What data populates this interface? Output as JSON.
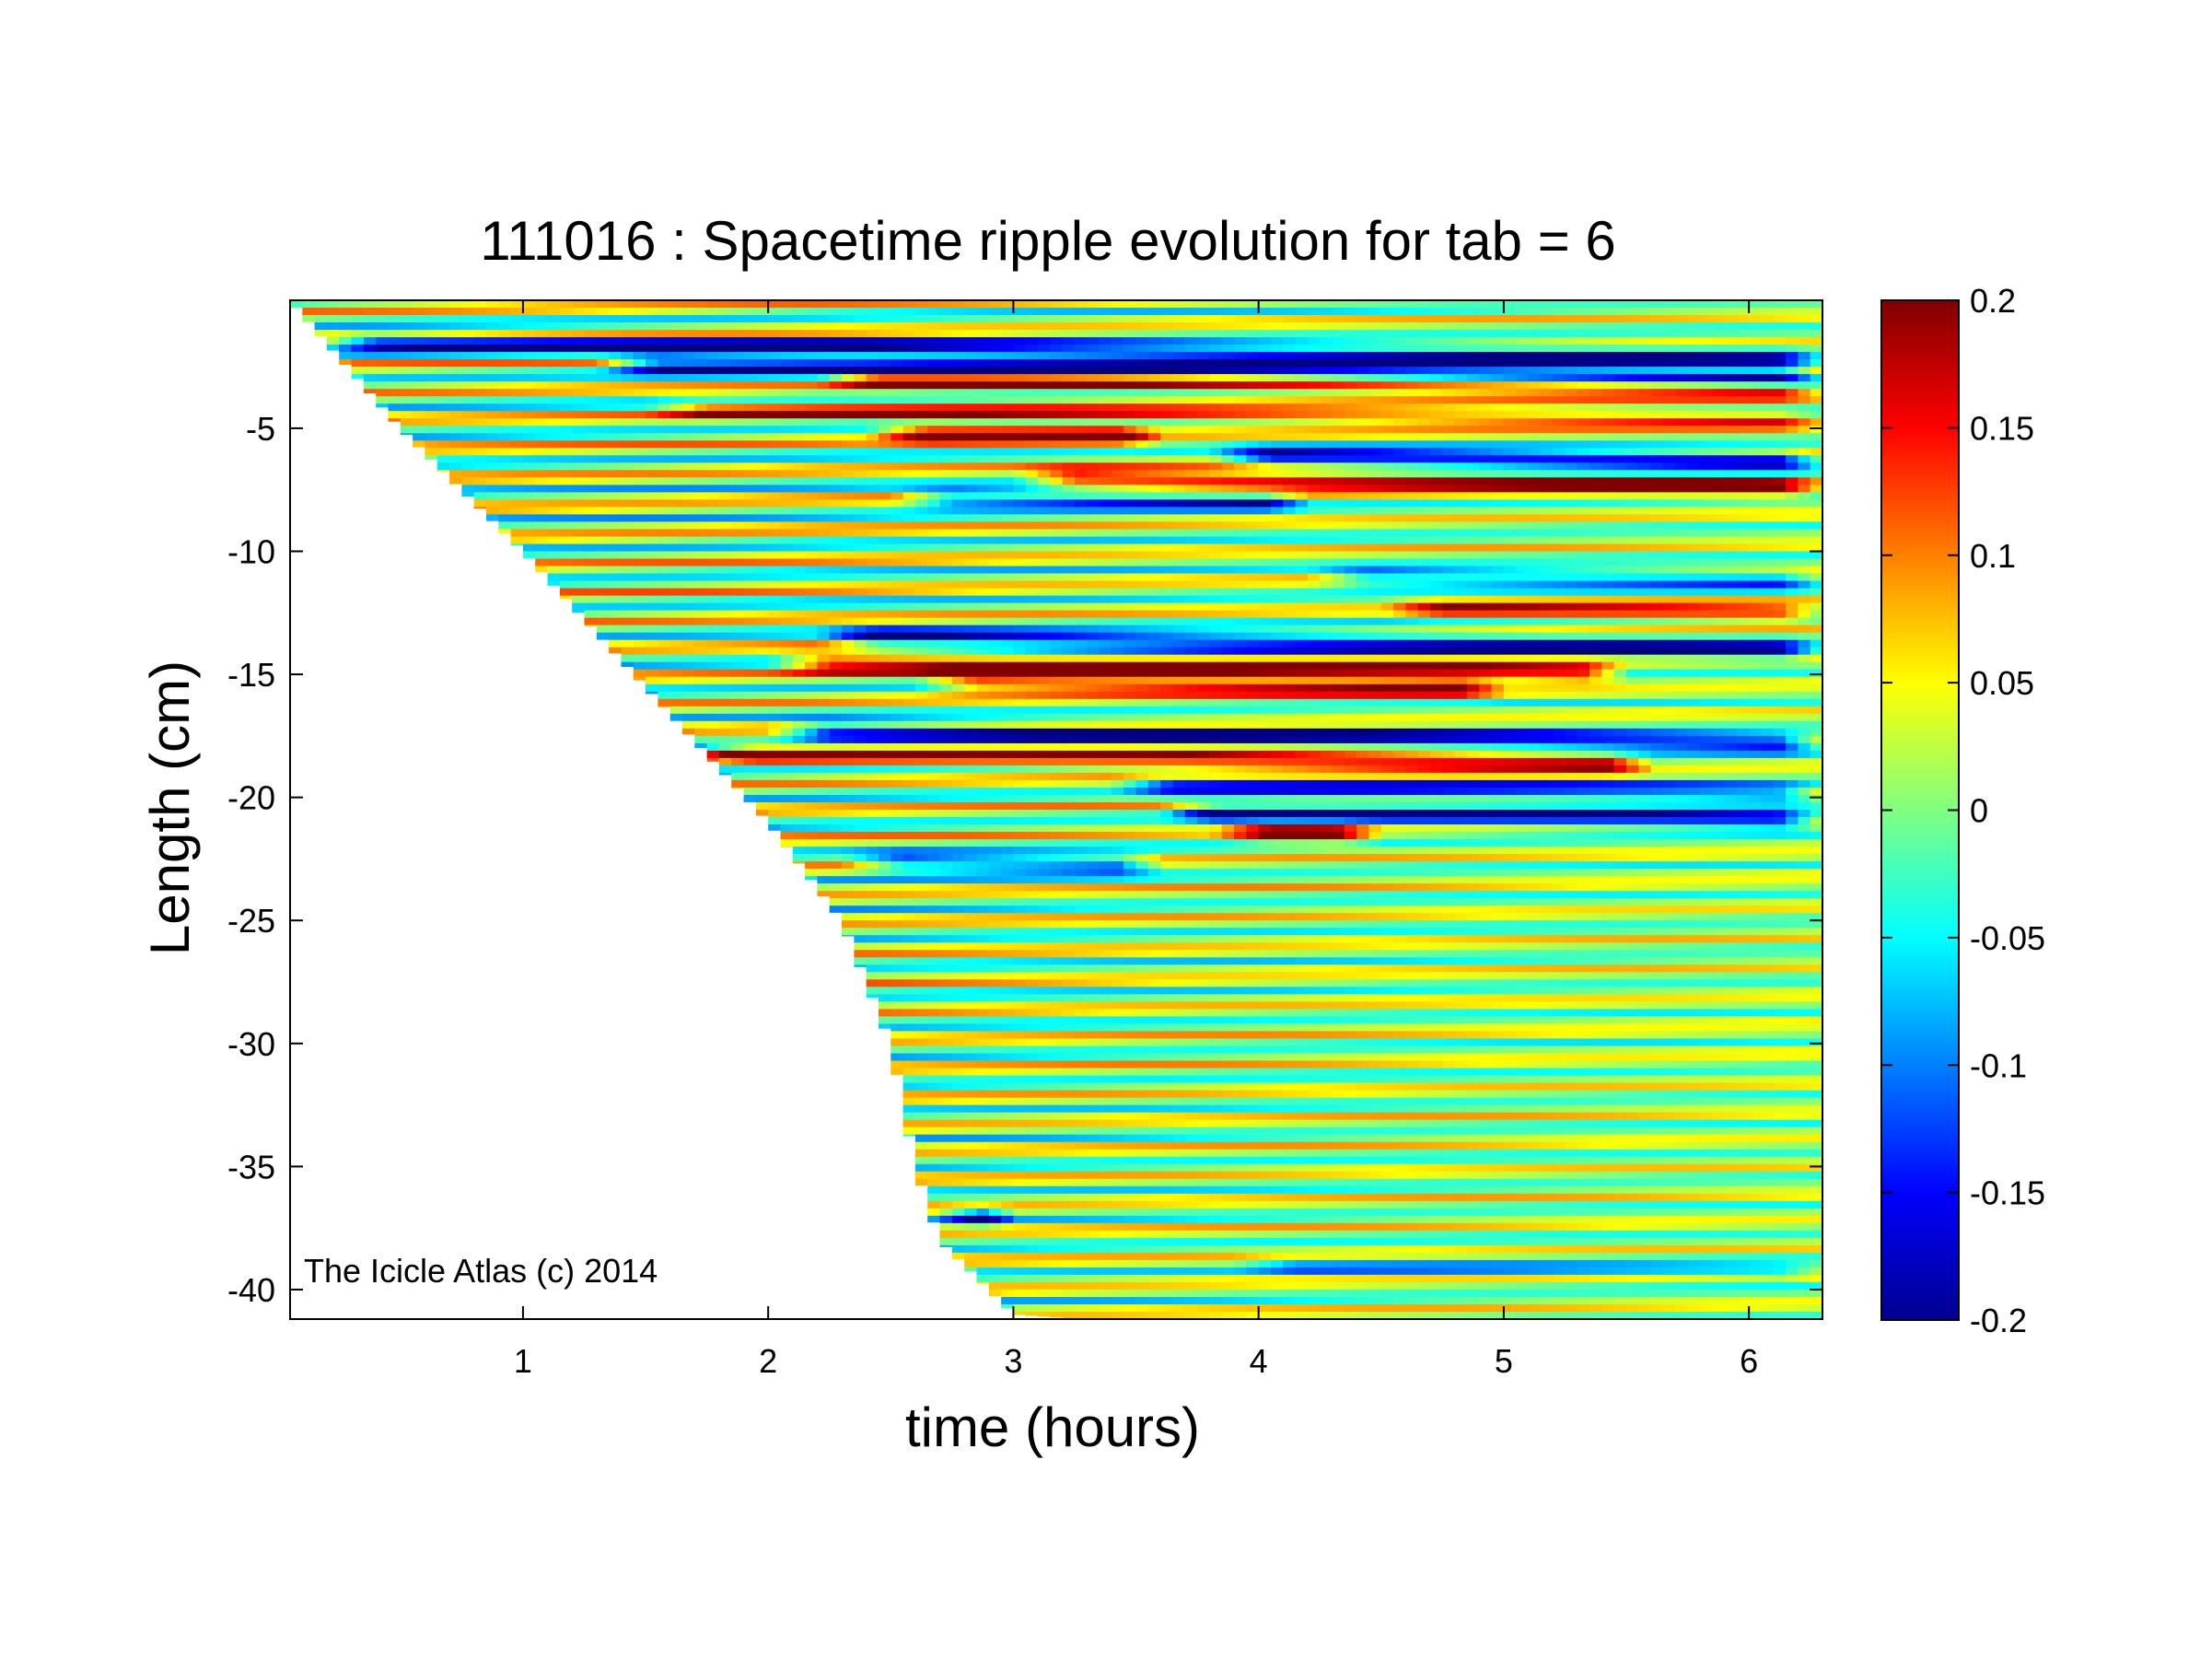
{
  "chart_data": {
    "type": "heatmap",
    "title": "111016 : Spacetime ripple evolution for tab = 6",
    "xlabel": "time (hours)",
    "ylabel": "Length (cm)",
    "xlim": [
      0.05,
      6.3
    ],
    "ylim": [
      -41.2,
      0.2
    ],
    "xticks": [
      1,
      2,
      3,
      4,
      5,
      6
    ],
    "yticks": [
      -5,
      -10,
      -15,
      -20,
      -25,
      -30,
      -35,
      -40
    ],
    "colorbar": {
      "colormap": "jet",
      "clim": [
        -0.2,
        0.2
      ],
      "ticks": [
        0.2,
        0.15,
        0.1,
        0.05,
        0,
        -0.05,
        -0.1,
        -0.15,
        -0.2
      ],
      "tick_labels": [
        "0.2",
        "0.15",
        "0.1",
        "0.05",
        "0",
        "-0.05",
        "-0.1",
        "-0.15",
        "-0.2"
      ]
    },
    "annotation": "The Icicle Atlas (c) 2014",
    "valid_region_front": [
      {
        "t": 0.05,
        "length": 0.2
      },
      {
        "t": 0.5,
        "length": -5
      },
      {
        "t": 1.0,
        "length": -10
      },
      {
        "t": 1.5,
        "length": -15.5
      },
      {
        "t": 2.0,
        "length": -21
      },
      {
        "t": 2.3,
        "length": -25
      },
      {
        "t": 2.5,
        "length": -30
      },
      {
        "t": 2.6,
        "length": -35
      },
      {
        "t": 2.7,
        "length": -38
      },
      {
        "t": 3.0,
        "length": -41
      },
      {
        "t": 3.3,
        "length": -41.2
      }
    ],
    "strong_bands": [
      {
        "length": -1.5,
        "t_start": 0.15,
        "t_end": 6.3,
        "amplitude": -0.19
      },
      {
        "length": -2.4,
        "t_start": 1.3,
        "t_end": 6.3,
        "amplitude": -0.2
      },
      {
        "length": -3.0,
        "t_start": 2.2,
        "t_end": 6.3,
        "amplitude": 0.17
      },
      {
        "length": -4.2,
        "t_start": 1.5,
        "t_end": 6.3,
        "amplitude": 0.12
      },
      {
        "length": -5.2,
        "t_start": 2.4,
        "t_end": 3.6,
        "amplitude": 0.19
      },
      {
        "length": -6.1,
        "t_start": 3.8,
        "t_end": 6.3,
        "amplitude": -0.2
      },
      {
        "length": -7.0,
        "t_start": 3.0,
        "t_end": 6.3,
        "amplitude": 0.18
      },
      {
        "length": -7.8,
        "t_start": 2.5,
        "t_end": 4.2,
        "amplitude": -0.16
      },
      {
        "length": -11.0,
        "t_start": 4.2,
        "t_end": 6.3,
        "amplitude": -0.13
      },
      {
        "length": -12.3,
        "t_start": 4.5,
        "t_end": 6.3,
        "amplitude": 0.14
      },
      {
        "length": -13.5,
        "t_start": 2.2,
        "t_end": 6.3,
        "amplitude": -0.2
      },
      {
        "length": -14.5,
        "t_start": 2.0,
        "t_end": 5.5,
        "amplitude": 0.19
      },
      {
        "length": -15.3,
        "t_start": 2.6,
        "t_end": 5.0,
        "amplitude": 0.16
      },
      {
        "length": -17.3,
        "t_start": 2.0,
        "t_end": 6.3,
        "amplitude": -0.2
      },
      {
        "length": -18.2,
        "t_start": 1.7,
        "t_end": 5.6,
        "amplitude": 0.19
      },
      {
        "length": -19.5,
        "t_start": 3.4,
        "t_end": 6.3,
        "amplitude": -0.15
      },
      {
        "length": -20.6,
        "t_start": 3.6,
        "t_end": 6.3,
        "amplitude": -0.2
      },
      {
        "length": -21.4,
        "t_start": 3.8,
        "t_end": 4.5,
        "amplitude": 0.18
      },
      {
        "length": -22.6,
        "t_start": 2.3,
        "t_end": 3.6,
        "amplitude": -0.16
      },
      {
        "length": -37.0,
        "t_start": 2.68,
        "t_end": 3.0,
        "amplitude": -0.2
      },
      {
        "length": -39.0,
        "t_start": 3.9,
        "t_end": 6.3,
        "amplitude": -0.08
      }
    ]
  }
}
